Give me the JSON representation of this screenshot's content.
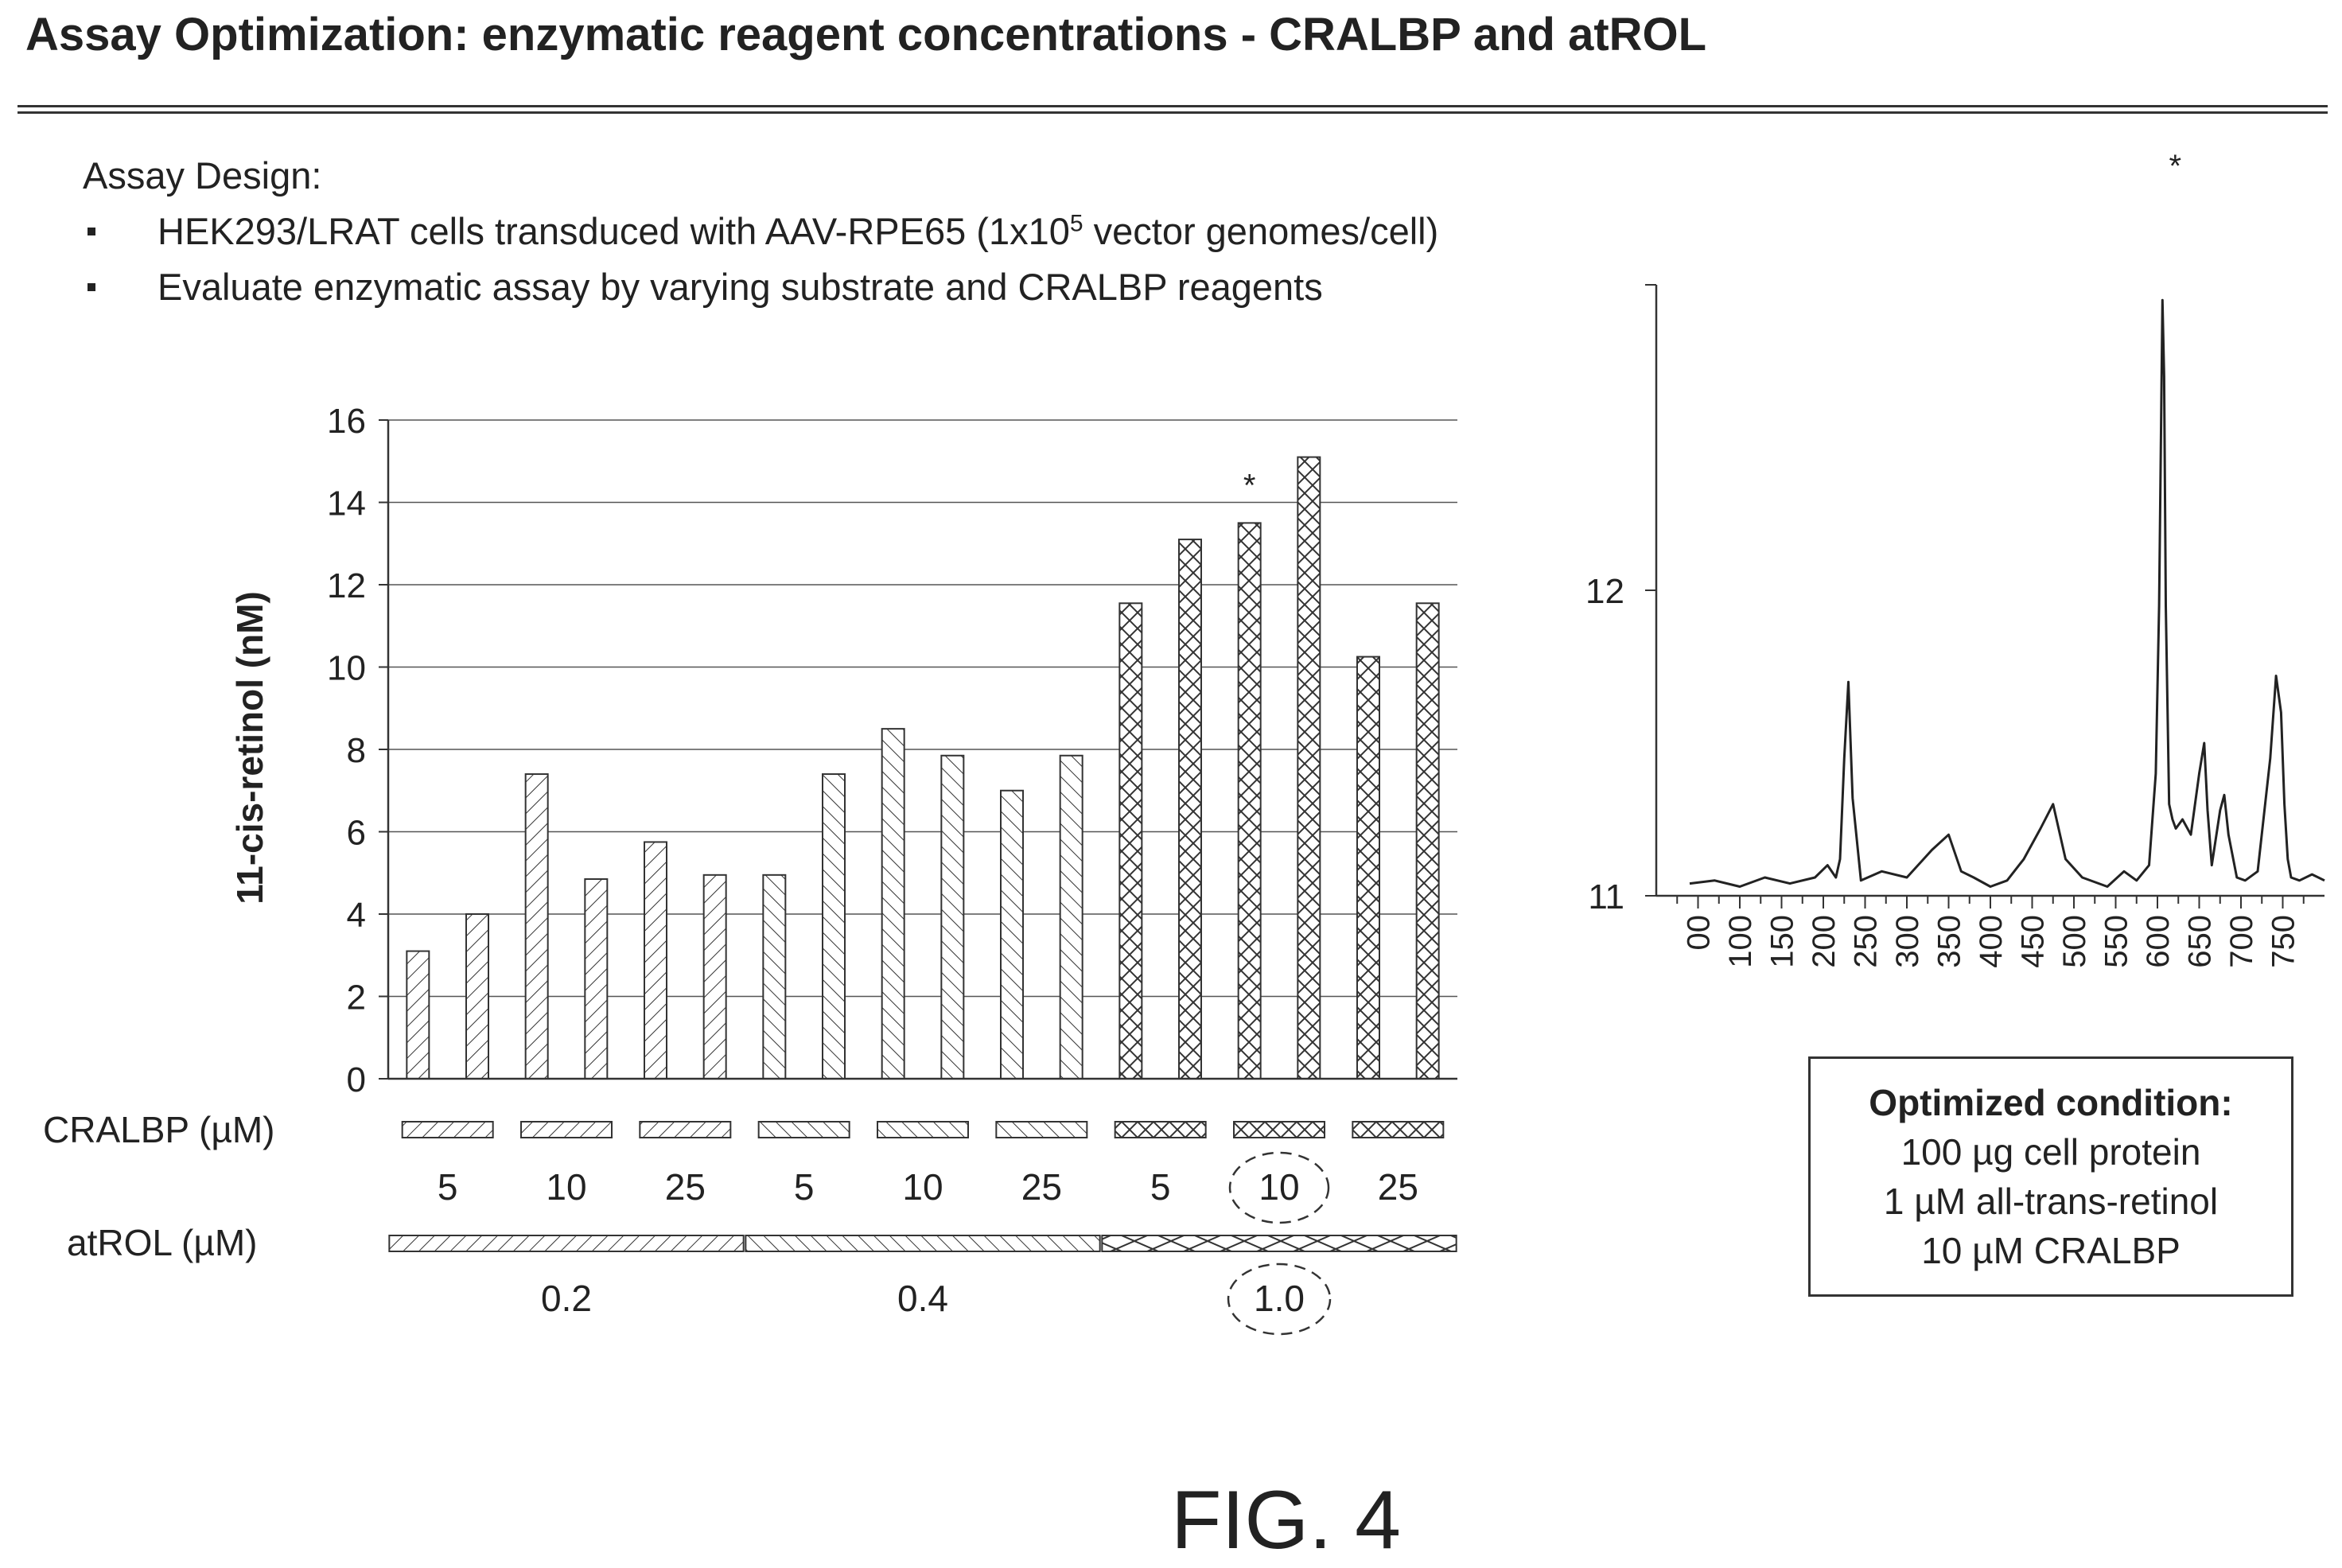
{
  "title": "Assay Optimization: enzymatic reagent concentrations - CRALBP and atROL",
  "assay_design": {
    "heading": "Assay Design:",
    "bullet1_pre": "HEK293/LRAT cells transduced with AAV-RPE65 (1x10",
    "bullet1_sup": "5",
    "bullet1_post": " vector genomes/cell)",
    "bullet2": "Evaluate enzymatic assay by varying substrate and CRALBP reagents"
  },
  "optimized_condition": {
    "title": "Optimized condition:",
    "lines": [
      "100 µg cell protein",
      "1 µM all-trans-retinol",
      "10 µM CRALBP"
    ]
  },
  "figure_label": "FIG. 4",
  "chart_data": [
    {
      "type": "bar",
      "ylabel": "11-cis-retinol (nM)",
      "ylim": [
        0,
        16
      ],
      "yticks": [
        0,
        2,
        4,
        6,
        8,
        10,
        12,
        14,
        16
      ],
      "grid": true,
      "cralbp_label": "CRALBP (µM)",
      "atrol_label": "atROL (µM)",
      "cralbp_values": [
        "5",
        "10",
        "25",
        "5",
        "10",
        "25",
        "5",
        "10",
        "25"
      ],
      "atrol_values": [
        "0.2",
        "0.4",
        "1.0"
      ],
      "highlighted_cralbp_index": 7,
      "highlighted_atrol_index": 2,
      "values": [
        3.1,
        4.0,
        7.4,
        4.85,
        5.75,
        4.95,
        4.95,
        7.4,
        8.5,
        7.85,
        7.0,
        7.85,
        11.55,
        13.1,
        13.5,
        15.1,
        10.25,
        11.55
      ],
      "annotation": {
        "text": "*",
        "bar_index": 14
      }
    },
    {
      "type": "line",
      "yticks": [
        11,
        12
      ],
      "xticks": [
        "00",
        "100",
        "150",
        "200",
        "250",
        "300",
        "350",
        "400",
        "450",
        "500",
        "550",
        "600",
        "650",
        "700",
        "750"
      ],
      "annotation": {
        "text": "*",
        "x": 606
      },
      "x": [
        40,
        70,
        100,
        130,
        160,
        190,
        205,
        215,
        220,
        225,
        230,
        235,
        245,
        270,
        300,
        330,
        350,
        365,
        380,
        400,
        420,
        440,
        460,
        475,
        490,
        510,
        540,
        560,
        575,
        590,
        598,
        602,
        604,
        606,
        608,
        610,
        614,
        618,
        622,
        630,
        640,
        650,
        656,
        660,
        665,
        675,
        680,
        685,
        695,
        705,
        720,
        735,
        742,
        748,
        752,
        756,
        760,
        770,
        785,
        800
      ],
      "y": [
        11.04,
        11.05,
        11.03,
        11.06,
        11.04,
        11.06,
        11.1,
        11.06,
        11.12,
        11.45,
        11.7,
        11.32,
        11.05,
        11.08,
        11.06,
        11.15,
        11.2,
        11.08,
        11.06,
        11.03,
        11.05,
        11.12,
        11.22,
        11.3,
        11.12,
        11.06,
        11.03,
        11.08,
        11.05,
        11.1,
        11.4,
        11.95,
        12.45,
        12.95,
        12.7,
        11.95,
        11.3,
        11.25,
        11.22,
        11.25,
        11.2,
        11.4,
        11.5,
        11.28,
        11.1,
        11.28,
        11.33,
        11.2,
        11.06,
        11.05,
        11.08,
        11.45,
        11.72,
        11.6,
        11.3,
        11.12,
        11.06,
        11.05,
        11.07,
        11.05
      ]
    }
  ]
}
